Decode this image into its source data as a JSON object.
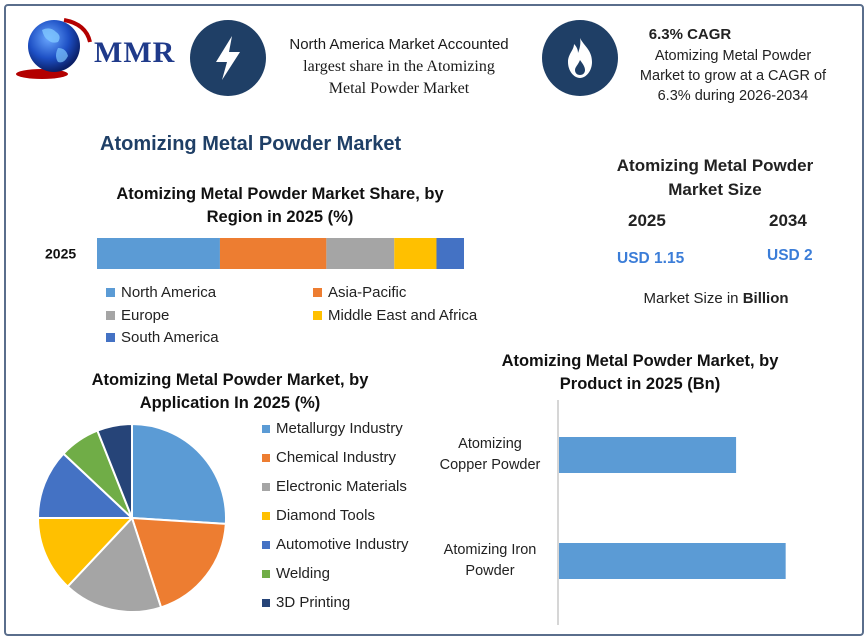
{
  "logo": {
    "text": "MMR"
  },
  "highlight_left": {
    "line1": "North America Market Accounted",
    "line2": "largest share in the Atomizing",
    "line3": "Metal Powder Market",
    "icon": "lightning-bolt-icon"
  },
  "highlight_right": {
    "title": "6.3% CAGR",
    "line1": "Atomizing Metal Powder",
    "line2": "Market to grow at a CAGR of",
    "line3": "6.3% during 2026-2034",
    "icon": "flame-icon"
  },
  "main_title": "Atomizing Metal Powder Market",
  "market_size": {
    "title_line1": "Atomizing Metal Powder",
    "title_line2": "Market Size",
    "year1": "2025",
    "year2": "2034",
    "value1": "USD 1.15",
    "value2": "USD 2",
    "note_prefix": "Market Size in ",
    "note_bold": "Billion"
  },
  "colors": {
    "blue": "#5b9bd5",
    "orange": "#ed7d31",
    "gray": "#a5a5a5",
    "yellow": "#ffc000",
    "darkblue": "#4472c4",
    "green": "#70ad47",
    "navy": "#264478",
    "icon_bg": "#1f3f66"
  },
  "chart_data": [
    {
      "type": "bar",
      "orientation": "horizontal-stacked",
      "title_line1": "Atomizing Metal Powder Market Share, by",
      "title_line2": "Region in 2025 (%)",
      "categories": [
        "2025"
      ],
      "series": [
        {
          "name": "North America",
          "values": [
            33.5
          ]
        },
        {
          "name": "Asia-Pacific",
          "values": [
            29
          ]
        },
        {
          "name": "Europe",
          "values": [
            18.5
          ]
        },
        {
          "name": "Middle East and Africa",
          "values": [
            11.5
          ]
        },
        {
          "name": "South America",
          "values": [
            7.5
          ]
        }
      ],
      "legend_position": "bottom"
    },
    {
      "type": "pie",
      "title_line1": "Atomizing Metal Powder Market, by",
      "title_line2": "Application In 2025 (%)",
      "labels": [
        "Metallurgy Industry",
        "Chemical Industry",
        "Electronic Materials",
        "Diamond Tools",
        "Automotive Industry",
        "Welding",
        "3D Printing"
      ],
      "values": [
        26,
        19,
        17,
        13,
        12,
        7,
        6
      ],
      "legend_position": "right"
    },
    {
      "type": "bar",
      "orientation": "horizontal",
      "title_line1": "Atomizing Metal Powder Market, by",
      "title_line2": "Product in 2025 (Bn)",
      "categories": [
        {
          "line1": "Atomizing",
          "line2": "Copper Powder"
        },
        {
          "line1": "Atomizing Iron",
          "line2": "Powder"
        }
      ],
      "values": [
        0.5,
        0.64
      ]
    }
  ]
}
